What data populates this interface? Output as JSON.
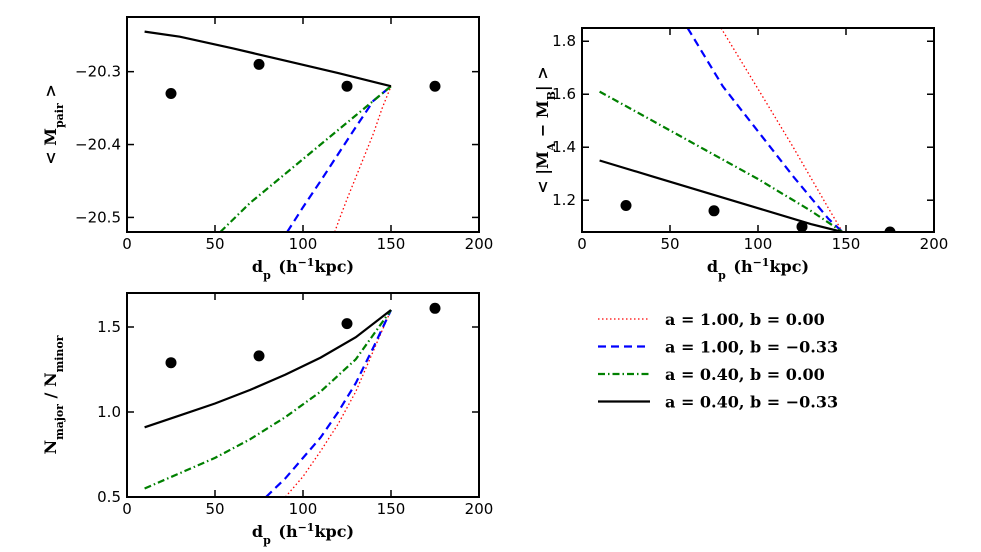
{
  "chart_data": [
    {
      "id": "pair",
      "type": "line",
      "xlabel": "d_p (h^-1 kpc)",
      "ylabel": "< M_pair >",
      "xlim": [
        0,
        200
      ],
      "ylim": [
        -20.52,
        -20.225
      ],
      "xticks": [
        "0",
        "50",
        "100",
        "150",
        "200"
      ],
      "xtick_values": [
        0,
        50,
        100,
        150,
        200
      ],
      "yticks": [
        "-20.3",
        "-20.4",
        "-20.5"
      ],
      "ytick_values": [
        -20.3,
        -20.4,
        -20.5
      ],
      "points": {
        "x": [
          25,
          75,
          125,
          175
        ],
        "y": [
          -20.33,
          -20.29,
          -20.32,
          -20.32
        ],
        "err": [
          0.007,
          0.007,
          0.007,
          0.007
        ]
      },
      "series": [
        {
          "key": "a100_b000",
          "x": [
            118,
            121,
            125,
            130,
            135,
            140,
            145,
            150
          ],
          "y": [
            -20.52,
            -20.5,
            -20.475,
            -20.445,
            -20.415,
            -20.385,
            -20.35,
            -20.32
          ]
        },
        {
          "key": "a100_b033",
          "x": [
            91,
            100,
            110,
            120,
            130,
            140,
            150
          ],
          "y": [
            -20.52,
            -20.486,
            -20.45,
            -20.413,
            -20.376,
            -20.34,
            -20.32
          ]
        },
        {
          "key": "a040_b000",
          "x": [
            53,
            70,
            90,
            110,
            130,
            150
          ],
          "y": [
            -20.52,
            -20.48,
            -20.44,
            -20.4,
            -20.36,
            -20.32
          ]
        },
        {
          "key": "a040_b033",
          "x": [
            10,
            30,
            60,
            90,
            120,
            150
          ],
          "y": [
            -20.245,
            -20.252,
            -20.268,
            -20.285,
            -20.302,
            -20.32
          ]
        }
      ]
    },
    {
      "id": "diff",
      "type": "line",
      "xlabel": "d_p (h^-1 kpc)",
      "ylabel": "< |M_A - M_B| >",
      "xlim": [
        0,
        200
      ],
      "ylim": [
        1.08,
        1.85
      ],
      "xticks": [
        "0",
        "50",
        "100",
        "150",
        "200"
      ],
      "xtick_values": [
        0,
        50,
        100,
        150,
        200
      ],
      "yticks": [
        "1.2",
        "1.4",
        "1.6",
        "1.8"
      ],
      "ytick_values": [
        1.2,
        1.4,
        1.6,
        1.8
      ],
      "points": {
        "x": [
          25,
          75,
          125,
          175
        ],
        "y": [
          1.18,
          1.16,
          1.1,
          1.08
        ]
      },
      "series": [
        {
          "key": "a100_b000",
          "x": [
            79,
            100,
            120,
            140,
            148
          ],
          "y": [
            1.85,
            1.62,
            1.4,
            1.17,
            1.08
          ]
        },
        {
          "key": "a100_b033",
          "x": [
            60,
            80,
            100,
            120,
            140,
            148
          ],
          "y": [
            1.85,
            1.63,
            1.46,
            1.29,
            1.13,
            1.08
          ]
        },
        {
          "key": "a040_b000",
          "x": [
            10,
            40,
            70,
            100,
            130,
            148
          ],
          "y": [
            1.61,
            1.5,
            1.39,
            1.28,
            1.16,
            1.08
          ]
        },
        {
          "key": "a040_b033",
          "x": [
            10,
            40,
            70,
            100,
            130,
            148
          ],
          "y": [
            1.35,
            1.29,
            1.23,
            1.17,
            1.11,
            1.08
          ]
        }
      ]
    },
    {
      "id": "ratio",
      "type": "line",
      "xlabel": "d_p (h^-1 kpc)",
      "ylabel": "N_major / N_minor",
      "xlim": [
        0,
        200
      ],
      "ylim": [
        0.5,
        1.7
      ],
      "xticks": [
        "0",
        "50",
        "100",
        "150",
        "200"
      ],
      "xtick_values": [
        0,
        50,
        100,
        150,
        200
      ],
      "yticks": [
        "0.5",
        "1.0",
        "1.5"
      ],
      "ytick_values": [
        0.5,
        1.0,
        1.5
      ],
      "points": {
        "x": [
          25,
          75,
          125,
          175
        ],
        "y": [
          1.29,
          1.33,
          1.52,
          1.61
        ]
      },
      "series": [
        {
          "key": "a100_b000",
          "x": [
            90,
            100,
            110,
            120,
            130,
            140,
            150
          ],
          "y": [
            0.5,
            0.62,
            0.77,
            0.93,
            1.12,
            1.36,
            1.6
          ]
        },
        {
          "key": "a100_b033",
          "x": [
            79,
            90,
            100,
            110,
            120,
            130,
            140,
            150
          ],
          "y": [
            0.5,
            0.61,
            0.73,
            0.85,
            1.0,
            1.17,
            1.38,
            1.6
          ]
        },
        {
          "key": "a040_b000",
          "x": [
            10,
            30,
            50,
            70,
            90,
            110,
            130,
            150
          ],
          "y": [
            0.55,
            0.64,
            0.73,
            0.84,
            0.97,
            1.12,
            1.31,
            1.6
          ]
        },
        {
          "key": "a040_b033",
          "x": [
            10,
            30,
            50,
            70,
            90,
            110,
            130,
            150
          ],
          "y": [
            0.91,
            0.98,
            1.05,
            1.13,
            1.22,
            1.32,
            1.44,
            1.6
          ]
        }
      ]
    }
  ],
  "legend": [
    {
      "key": "a100_b000",
      "label": "a = 1.00, b = 0.00",
      "color": "#ff0000",
      "dash": "dot"
    },
    {
      "key": "a100_b033",
      "label": "a = 1.00, b = −0.33",
      "color": "#0000ff",
      "dash": "dash"
    },
    {
      "key": "a040_b000",
      "label": "a = 0.40, b = 0.00",
      "color": "#008000",
      "dash": "dashdot"
    },
    {
      "key": "a040_b033",
      "label": "a = 0.40, b = −0.33",
      "color": "#000000",
      "dash": "solid"
    }
  ]
}
